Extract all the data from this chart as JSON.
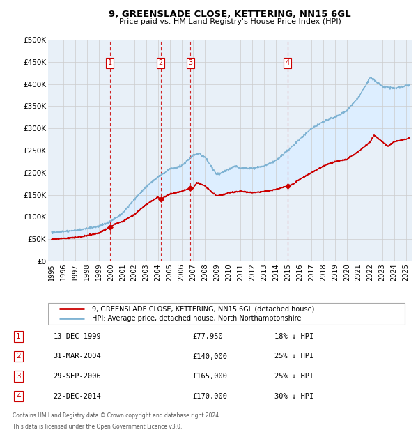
{
  "title": "9, GREENSLADE CLOSE, KETTERING, NN15 6GL",
  "subtitle": "Price paid vs. HM Land Registry's House Price Index (HPI)",
  "red_label": "9, GREENSLADE CLOSE, KETTERING, NN15 6GL (detached house)",
  "blue_label": "HPI: Average price, detached house, North Northamptonshire",
  "footnote1": "Contains HM Land Registry data © Crown copyright and database right 2024.",
  "footnote2": "This data is licensed under the Open Government Licence v3.0.",
  "sales": [
    {
      "num": 1,
      "date": "13-DEC-1999",
      "price": 77950,
      "price_str": "£77,950",
      "year": 1999.95,
      "pct": "18%",
      "dir": "↓"
    },
    {
      "num": 2,
      "date": "31-MAR-2004",
      "price": 140000,
      "price_str": "£140,000",
      "year": 2004.25,
      "pct": "25%",
      "dir": "↓"
    },
    {
      "num": 3,
      "date": "29-SEP-2006",
      "price": 165000,
      "price_str": "£165,000",
      "year": 2006.75,
      "pct": "25%",
      "dir": "↓"
    },
    {
      "num": 4,
      "date": "22-DEC-2014",
      "price": 170000,
      "price_str": "£170,000",
      "year": 2014.97,
      "pct": "30%",
      "dir": "↓"
    }
  ],
  "red_color": "#cc0000",
  "blue_color": "#7fb3d3",
  "fill_color": "#ddeeff",
  "bg_color": "#e8f0f8",
  "vline_color": "#cc0000",
  "grid_color": "#cccccc",
  "box_color": "#cc0000",
  "ylim": [
    0,
    500000
  ],
  "yticks": [
    0,
    50000,
    100000,
    150000,
    200000,
    250000,
    300000,
    350000,
    400000,
    450000,
    500000
  ],
  "xlim_start": 1994.7,
  "xlim_end": 2025.5,
  "xticks": [
    1995,
    1996,
    1997,
    1998,
    1999,
    2000,
    2001,
    2002,
    2003,
    2004,
    2005,
    2006,
    2007,
    2008,
    2009,
    2010,
    2011,
    2012,
    2013,
    2014,
    2015,
    2016,
    2017,
    2018,
    2019,
    2020,
    2021,
    2022,
    2023,
    2024,
    2025
  ],
  "hpi_keypoints": [
    [
      1995.0,
      65000
    ],
    [
      1996.0,
      67000
    ],
    [
      1997.0,
      70000
    ],
    [
      1998.0,
      74000
    ],
    [
      1999.0,
      79000
    ],
    [
      2000.0,
      90000
    ],
    [
      2001.0,
      108000
    ],
    [
      2002.0,
      140000
    ],
    [
      2003.0,
      168000
    ],
    [
      2004.0,
      190000
    ],
    [
      2005.0,
      208000
    ],
    [
      2006.0,
      215000
    ],
    [
      2007.0,
      240000
    ],
    [
      2007.5,
      243000
    ],
    [
      2008.0,
      235000
    ],
    [
      2009.0,
      195000
    ],
    [
      2010.0,
      208000
    ],
    [
      2010.5,
      215000
    ],
    [
      2011.0,
      210000
    ],
    [
      2012.0,
      210000
    ],
    [
      2013.0,
      215000
    ],
    [
      2014.0,
      228000
    ],
    [
      2015.0,
      250000
    ],
    [
      2016.0,
      275000
    ],
    [
      2017.0,
      300000
    ],
    [
      2018.0,
      315000
    ],
    [
      2019.0,
      325000
    ],
    [
      2020.0,
      340000
    ],
    [
      2021.0,
      370000
    ],
    [
      2022.0,
      415000
    ],
    [
      2023.0,
      395000
    ],
    [
      2024.0,
      390000
    ],
    [
      2025.3,
      398000
    ]
  ],
  "red_keypoints": [
    [
      1995.0,
      50000
    ],
    [
      1996.0,
      52000
    ],
    [
      1997.0,
      54000
    ],
    [
      1998.0,
      58000
    ],
    [
      1999.0,
      64000
    ],
    [
      1999.95,
      77950
    ],
    [
      2000.5,
      86000
    ],
    [
      2001.0,
      90000
    ],
    [
      2002.0,
      105000
    ],
    [
      2003.0,
      128000
    ],
    [
      2004.0,
      145000
    ],
    [
      2004.25,
      140000
    ],
    [
      2005.0,
      152000
    ],
    [
      2006.0,
      158000
    ],
    [
      2006.75,
      165000
    ],
    [
      2007.0,
      165000
    ],
    [
      2007.3,
      178000
    ],
    [
      2008.0,
      170000
    ],
    [
      2008.5,
      158000
    ],
    [
      2009.0,
      148000
    ],
    [
      2009.5,
      150000
    ],
    [
      2010.0,
      155000
    ],
    [
      2011.0,
      158000
    ],
    [
      2012.0,
      155000
    ],
    [
      2013.0,
      158000
    ],
    [
      2014.0,
      162000
    ],
    [
      2014.97,
      170000
    ],
    [
      2015.5,
      175000
    ],
    [
      2016.0,
      185000
    ],
    [
      2017.0,
      200000
    ],
    [
      2018.0,
      215000
    ],
    [
      2019.0,
      225000
    ],
    [
      2020.0,
      230000
    ],
    [
      2021.0,
      248000
    ],
    [
      2022.0,
      270000
    ],
    [
      2022.3,
      285000
    ],
    [
      2023.0,
      270000
    ],
    [
      2023.5,
      260000
    ],
    [
      2024.0,
      270000
    ],
    [
      2025.3,
      278000
    ]
  ]
}
